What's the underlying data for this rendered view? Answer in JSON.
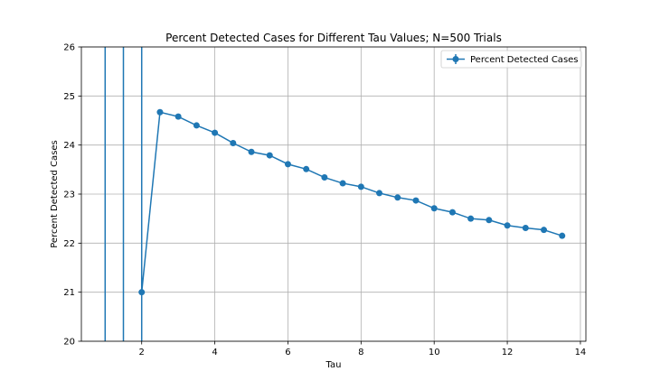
{
  "chart_data": {
    "type": "line",
    "title": "Percent Detected Cases for Different Tau Values; N=500 Trials",
    "xlabel": "Tau",
    "ylabel": "Percent Detected Cases",
    "xlim": [
      0.35,
      14.15
    ],
    "ylim": [
      20,
      26
    ],
    "xticks": [
      "2",
      "4",
      "6",
      "8",
      "10",
      "12",
      "14"
    ],
    "yticks": [
      "20",
      "21",
      "22",
      "23",
      "24",
      "25",
      "26"
    ],
    "grid": true,
    "legend_position": "top-right",
    "series": [
      {
        "name": "Percent Detected Cases",
        "color": "#1f77b4",
        "marker": "circle",
        "x": [
          2.0,
          2.5,
          3.0,
          3.5,
          4.0,
          4.5,
          5.0,
          5.5,
          6.0,
          6.5,
          7.0,
          7.5,
          8.0,
          8.5,
          9.0,
          9.5,
          10.0,
          10.5,
          11.0,
          11.5,
          12.0,
          12.5,
          13.0,
          13.5
        ],
        "y": [
          21.0,
          24.67,
          24.58,
          24.4,
          24.25,
          24.04,
          23.86,
          23.79,
          23.61,
          23.51,
          23.34,
          23.22,
          23.15,
          23.02,
          22.93,
          22.87,
          22.71,
          22.63,
          22.5,
          22.47,
          22.36,
          22.31,
          22.27,
          22.15
        ]
      }
    ],
    "vertical_lines_x": [
      1.0,
      1.5,
      2.0
    ]
  }
}
